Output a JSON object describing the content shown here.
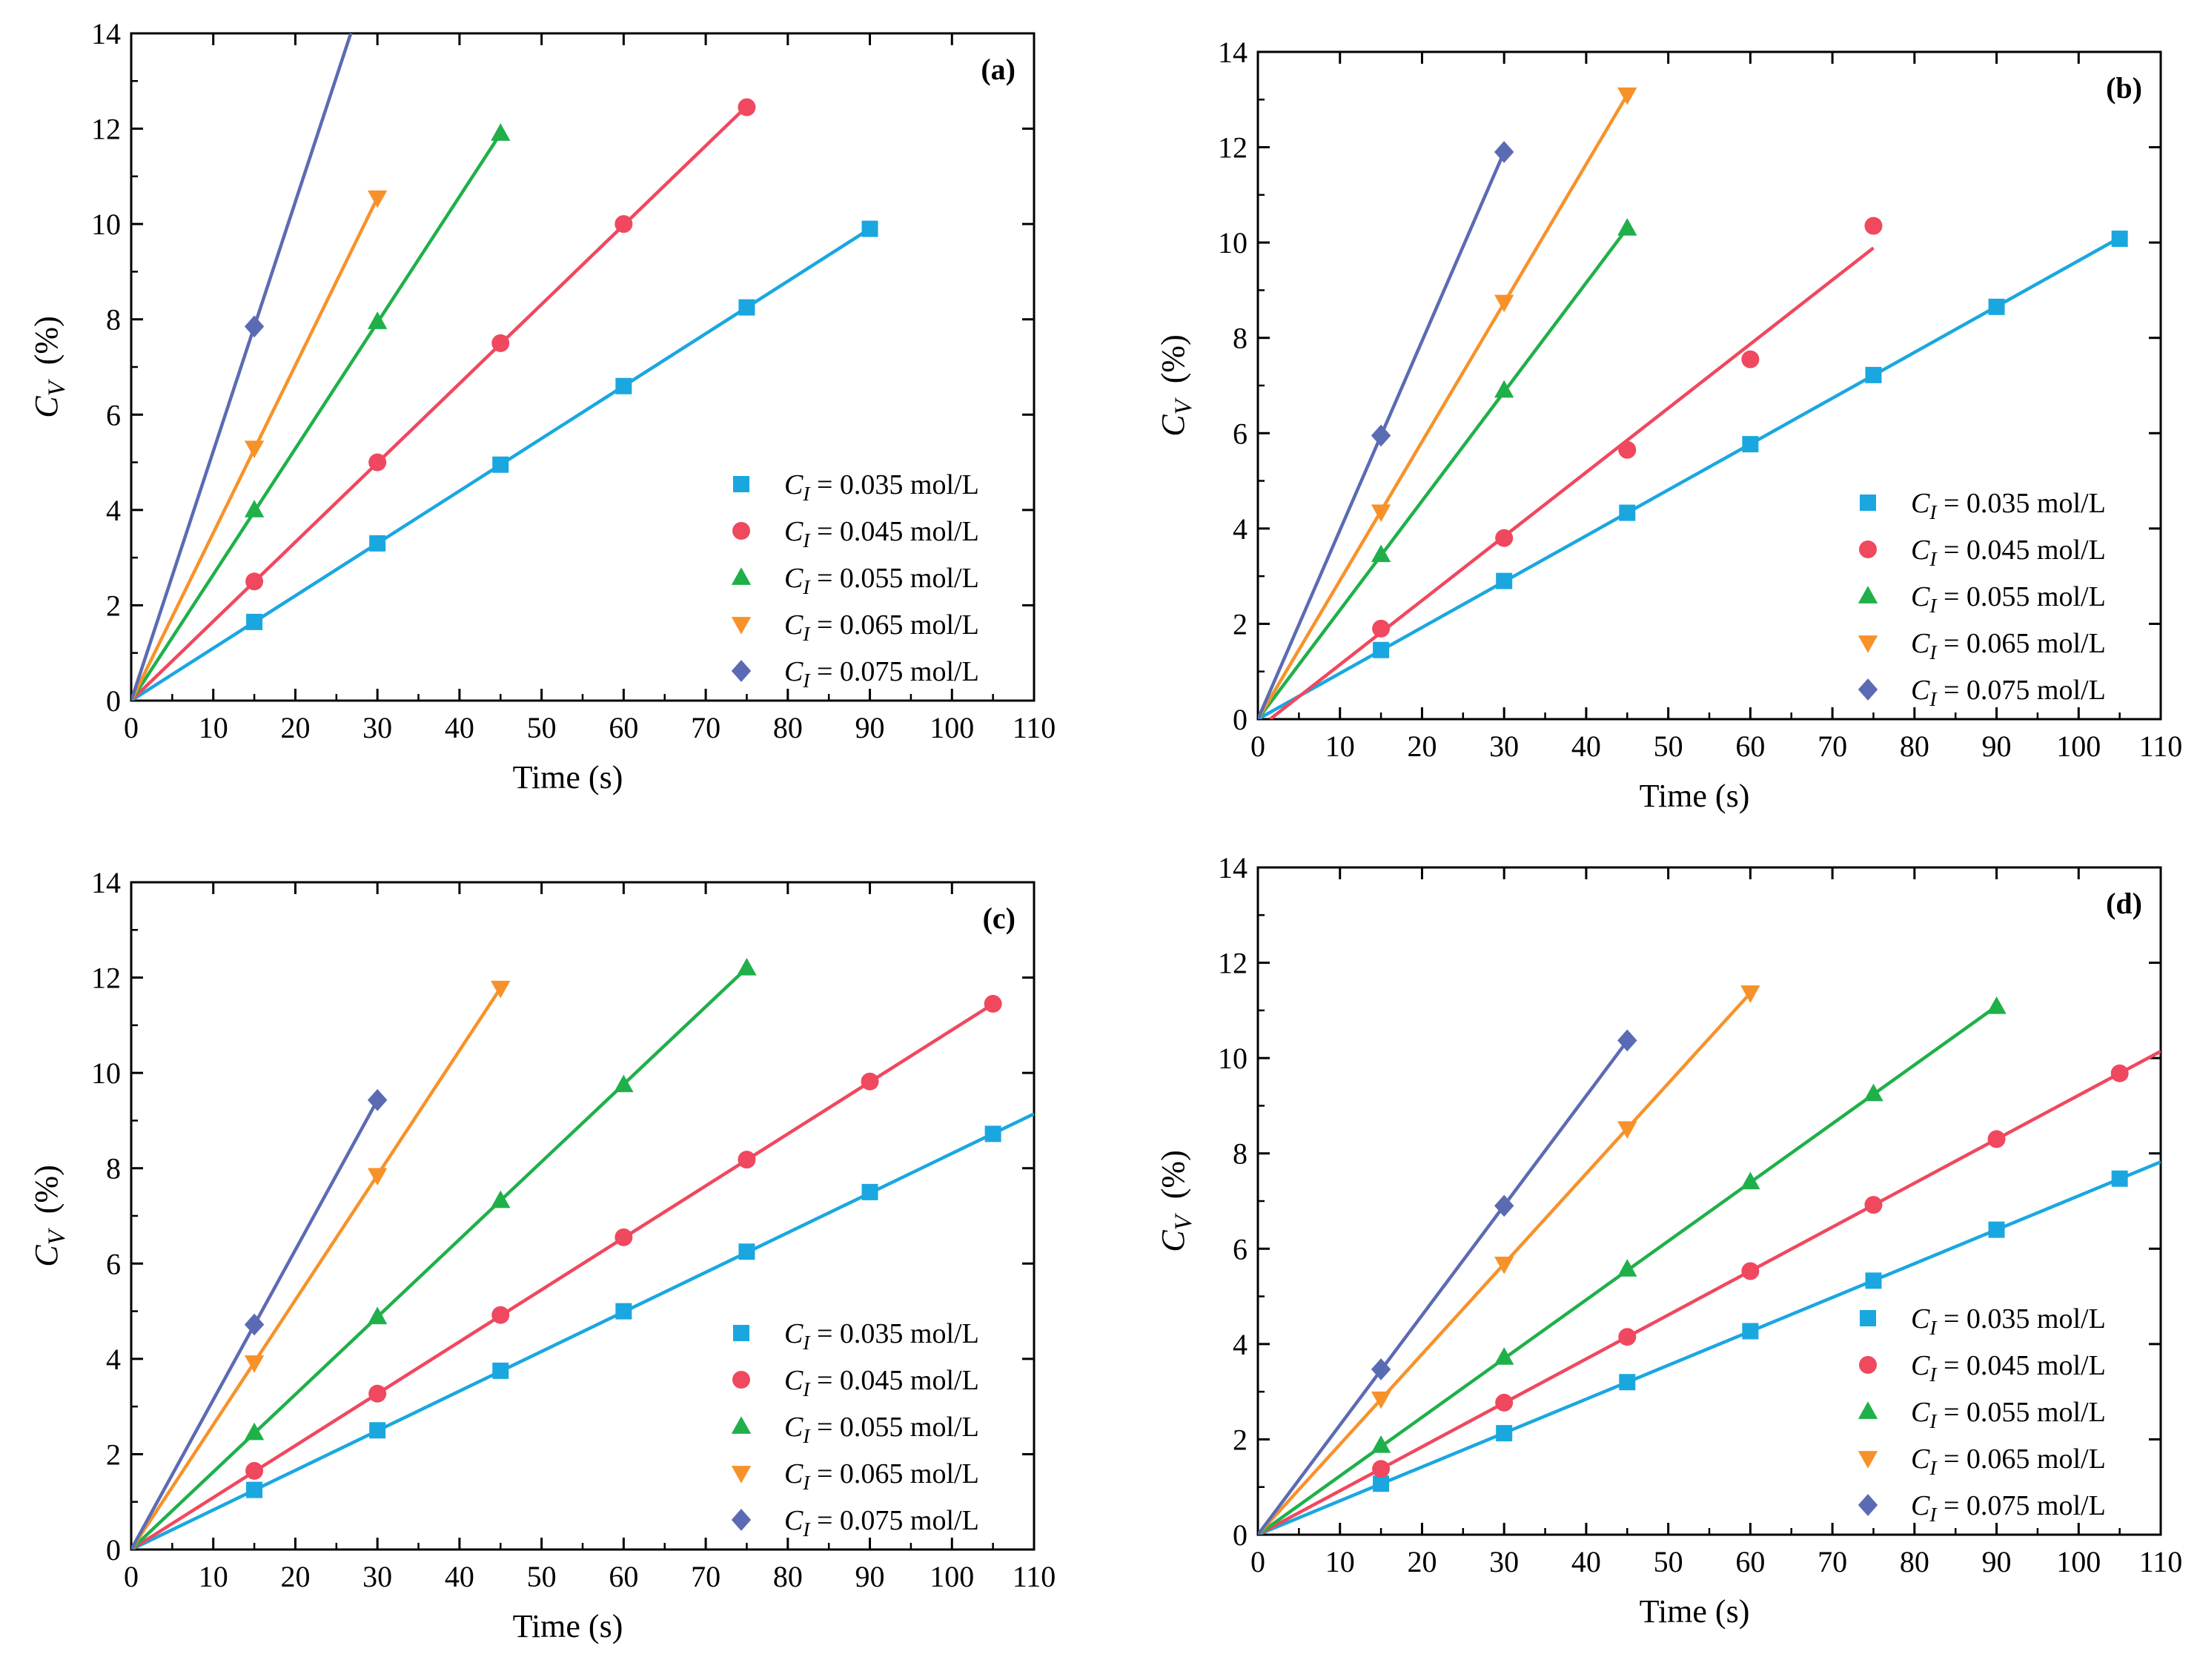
{
  "colors": {
    "c035": "#1aa7e0",
    "c045": "#f0485e",
    "c055": "#1fb04a",
    "c065": "#f7922a",
    "c075": "#5b6bb3"
  },
  "chart_data": [
    {
      "type": "scatter",
      "panel_label": "(a)",
      "xlabel": "Time (s)",
      "ylabel": "C_V (%)",
      "xlim": [
        0,
        110
      ],
      "ylim": [
        0,
        14
      ],
      "xticks": [
        "0",
        "10",
        "20",
        "30",
        "40",
        "50",
        "60",
        "70",
        "80",
        "90",
        "100",
        "110"
      ],
      "yticks": [
        "0",
        "2",
        "4",
        "6",
        "8",
        "10",
        "12",
        "14"
      ],
      "legend_position": "bottom-right",
      "series": [
        {
          "name": "C_I = 0.035 mol/L",
          "marker": "square",
          "x": [
            15,
            30,
            45,
            60,
            75,
            90
          ],
          "y": [
            1.65,
            3.3,
            4.95,
            6.6,
            8.25,
            9.9
          ],
          "fit": [
            0.11,
            0
          ],
          "fit_x": [
            0,
            90
          ]
        },
        {
          "name": "C_I = 0.045 mol/L",
          "marker": "circle",
          "x": [
            15,
            30,
            45,
            60,
            75
          ],
          "y": [
            2.5,
            5.0,
            7.5,
            10.0,
            12.45
          ],
          "fit": [
            0.1663,
            0
          ],
          "fit_x": [
            0,
            75
          ]
        },
        {
          "name": "C_I = 0.055 mol/L",
          "marker": "triangle-up",
          "x": [
            15,
            30,
            45
          ],
          "y": [
            4.0,
            7.95,
            11.9
          ],
          "fit": [
            0.2644,
            0
          ],
          "fit_x": [
            0,
            45
          ]
        },
        {
          "name": "C_I = 0.065 mol/L",
          "marker": "triangle-down",
          "x": [
            15,
            30
          ],
          "y": [
            5.3,
            10.55
          ],
          "fit": [
            0.3517,
            0
          ],
          "fit_x": [
            0,
            30
          ]
        },
        {
          "name": "C_I = 0.075 mol/L",
          "marker": "diamond",
          "x": [
            15
          ],
          "y": [
            7.85
          ],
          "fit": [
            0.5233,
            0
          ],
          "fit_x": [
            0,
            30
          ]
        }
      ]
    },
    {
      "type": "scatter",
      "panel_label": "(b)",
      "xlabel": "Time (s)",
      "ylabel": "C_V (%)",
      "xlim": [
        0,
        110
      ],
      "ylim": [
        0,
        14
      ],
      "xticks": [
        "0",
        "10",
        "20",
        "30",
        "40",
        "50",
        "60",
        "70",
        "80",
        "90",
        "100",
        "110"
      ],
      "yticks": [
        "0",
        "2",
        "4",
        "6",
        "8",
        "10",
        "12",
        "14"
      ],
      "legend_position": "bottom-right",
      "series": [
        {
          "name": "C_I = 0.035 mol/L",
          "marker": "square",
          "x": [
            15,
            30,
            45,
            60,
            75,
            90,
            105
          ],
          "y": [
            1.45,
            2.9,
            4.33,
            5.77,
            7.22,
            8.65,
            10.08
          ],
          "fit": [
            0.0962,
            0
          ],
          "fit_x": [
            0,
            105
          ]
        },
        {
          "name": "C_I = 0.045 mol/L",
          "marker": "circle",
          "x": [
            15,
            30,
            45,
            60,
            75
          ],
          "y": [
            1.9,
            3.8,
            5.65,
            7.55,
            10.35
          ],
          "fit": [
            0.1345,
            -0.2
          ],
          "fit_x": [
            1.5,
            75
          ]
        },
        {
          "name": "C_I = 0.055 mol/L",
          "marker": "triangle-up",
          "x": [
            15,
            30,
            45
          ],
          "y": [
            3.45,
            6.9,
            10.3
          ],
          "fit": [
            0.2289,
            0
          ],
          "fit_x": [
            0,
            45
          ]
        },
        {
          "name": "C_I = 0.065 mol/L",
          "marker": "triangle-down",
          "x": [
            15,
            30,
            45
          ],
          "y": [
            4.35,
            8.75,
            13.1
          ],
          "fit": [
            0.2911,
            0
          ],
          "fit_x": [
            0,
            45
          ]
        },
        {
          "name": "C_I = 0.075 mol/L",
          "marker": "diamond",
          "x": [
            15,
            30
          ],
          "y": [
            5.95,
            11.9
          ],
          "fit": [
            0.3967,
            0
          ],
          "fit_x": [
            0,
            30
          ]
        }
      ]
    },
    {
      "type": "scatter",
      "panel_label": "(c)",
      "xlabel": "Time (s)",
      "ylabel": "C_V (%)",
      "xlim": [
        0,
        110
      ],
      "ylim": [
        0,
        14
      ],
      "xticks": [
        "0",
        "10",
        "20",
        "30",
        "40",
        "50",
        "60",
        "70",
        "80",
        "90",
        "100",
        "110"
      ],
      "yticks": [
        "0",
        "2",
        "4",
        "6",
        "8",
        "10",
        "12",
        "14"
      ],
      "legend_position": "bottom-right",
      "series": [
        {
          "name": "C_I = 0.035 mol/L",
          "marker": "square",
          "x": [
            15,
            30,
            45,
            60,
            75,
            90,
            105
          ],
          "y": [
            1.25,
            2.5,
            3.75,
            5.0,
            6.25,
            7.5,
            8.72
          ],
          "fit": [
            0.0831,
            0
          ],
          "fit_x": [
            0,
            110
          ]
        },
        {
          "name": "C_I = 0.045 mol/L",
          "marker": "circle",
          "x": [
            15,
            30,
            45,
            60,
            75,
            90,
            105
          ],
          "y": [
            1.65,
            3.27,
            4.92,
            6.55,
            8.18,
            9.82,
            11.45
          ],
          "fit": [
            0.109,
            0
          ],
          "fit_x": [
            0,
            105
          ]
        },
        {
          "name": "C_I = 0.055 mol/L",
          "marker": "triangle-up",
          "x": [
            15,
            30,
            45,
            60,
            75
          ],
          "y": [
            2.45,
            4.88,
            7.32,
            9.75,
            12.2
          ],
          "fit": [
            0.1627,
            0
          ],
          "fit_x": [
            0,
            75
          ]
        },
        {
          "name": "C_I = 0.065 mol/L",
          "marker": "triangle-down",
          "x": [
            15,
            30,
            45
          ],
          "y": [
            3.92,
            7.85,
            11.78
          ],
          "fit": [
            0.2618,
            0
          ],
          "fit_x": [
            0,
            45
          ]
        },
        {
          "name": "C_I = 0.075 mol/L",
          "marker": "diamond",
          "x": [
            15,
            30
          ],
          "y": [
            4.72,
            9.43
          ],
          "fit": [
            0.3143,
            0
          ],
          "fit_x": [
            0,
            30
          ]
        }
      ]
    },
    {
      "type": "scatter",
      "panel_label": "(d)",
      "xlabel": "Time (s)",
      "ylabel": "C_V (%)",
      "xlim": [
        0,
        110
      ],
      "ylim": [
        0,
        14
      ],
      "xticks": [
        "0",
        "10",
        "20",
        "30",
        "40",
        "50",
        "60",
        "70",
        "80",
        "90",
        "100",
        "110"
      ],
      "yticks": [
        "0",
        "2",
        "4",
        "6",
        "8",
        "10",
        "12",
        "14"
      ],
      "legend_position": "bottom-right",
      "series": [
        {
          "name": "C_I = 0.035 mol/L",
          "marker": "square",
          "x": [
            15,
            30,
            45,
            60,
            75,
            90,
            105
          ],
          "y": [
            1.07,
            2.13,
            3.2,
            4.27,
            5.33,
            6.4,
            7.47
          ],
          "fit": [
            0.0711,
            0
          ],
          "fit_x": [
            0,
            110
          ]
        },
        {
          "name": "C_I = 0.045 mol/L",
          "marker": "circle",
          "x": [
            15,
            30,
            45,
            60,
            75,
            90,
            105
          ],
          "y": [
            1.38,
            2.77,
            4.15,
            5.53,
            6.92,
            8.3,
            9.68
          ],
          "fit": [
            0.0922,
            0
          ],
          "fit_x": [
            0,
            110
          ]
        },
        {
          "name": "C_I = 0.055 mol/L",
          "marker": "triangle-up",
          "x": [
            15,
            30,
            45,
            60,
            75,
            90
          ],
          "y": [
            1.87,
            3.72,
            5.57,
            7.4,
            9.25,
            11.08
          ],
          "fit": [
            0.1232,
            0
          ],
          "fit_x": [
            0,
            90
          ]
        },
        {
          "name": "C_I = 0.065 mol/L",
          "marker": "triangle-down",
          "x": [
            15,
            30,
            45,
            60
          ],
          "y": [
            2.85,
            5.68,
            8.52,
            11.37
          ],
          "fit": [
            0.1894,
            0
          ],
          "fit_x": [
            0,
            60
          ]
        },
        {
          "name": "C_I = 0.075 mol/L",
          "marker": "diamond",
          "x": [
            15,
            30,
            45
          ],
          "y": [
            3.47,
            6.9,
            10.37
          ],
          "fit": [
            0.2302,
            0
          ],
          "fit_x": [
            0,
            45
          ]
        }
      ]
    }
  ]
}
